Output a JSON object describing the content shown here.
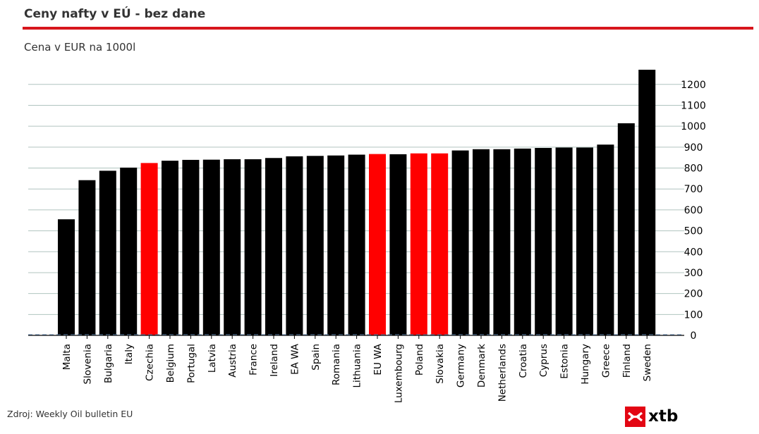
{
  "title": "Ceny nafty v EÚ - bez dane",
  "source": "Zdroj: Weekly Oil bulletin EU",
  "logo_text": "xtb",
  "colors": {
    "accent": "#d7161c",
    "bar_default": "#000000",
    "bar_highlight": "#ff0000",
    "grid": "#b0c4bf"
  },
  "chart_data": {
    "type": "bar",
    "title": "Ceny nafty v EÚ - bez dane",
    "ylabel": "Cena v EUR na 1000l",
    "xlabel": "",
    "ylim": [
      0,
      1280
    ],
    "yticks": [
      0,
      100,
      200,
      300,
      400,
      500,
      600,
      700,
      800,
      900,
      1000,
      1100,
      1200
    ],
    "y_axis_side": "right",
    "grid": true,
    "categories": [
      "Malta",
      "Slovenia",
      "Bulgaria",
      "Italy",
      "Czechia",
      "Belgium",
      "Portugal",
      "Latvia",
      "Austria",
      "France",
      "Ireland",
      "EA WA",
      "Spain",
      "Romania",
      "Lithuania",
      "EU WA",
      "Luxembourg",
      "Poland",
      "Slovakia",
      "Germany",
      "Denmark",
      "Netherlands",
      "Croatia",
      "Cyprus",
      "Estonia",
      "Hungary",
      "Greece",
      "Finland",
      "Sweden"
    ],
    "values": [
      555,
      742,
      787,
      802,
      824,
      835,
      839,
      840,
      842,
      842,
      848,
      856,
      858,
      860,
      864,
      867,
      866,
      870,
      870,
      884,
      890,
      890,
      893,
      896,
      898,
      898,
      912,
      1014,
      1270
    ],
    "highlighted": [
      "Czechia",
      "EU WA",
      "Poland",
      "Slovakia"
    ]
  }
}
